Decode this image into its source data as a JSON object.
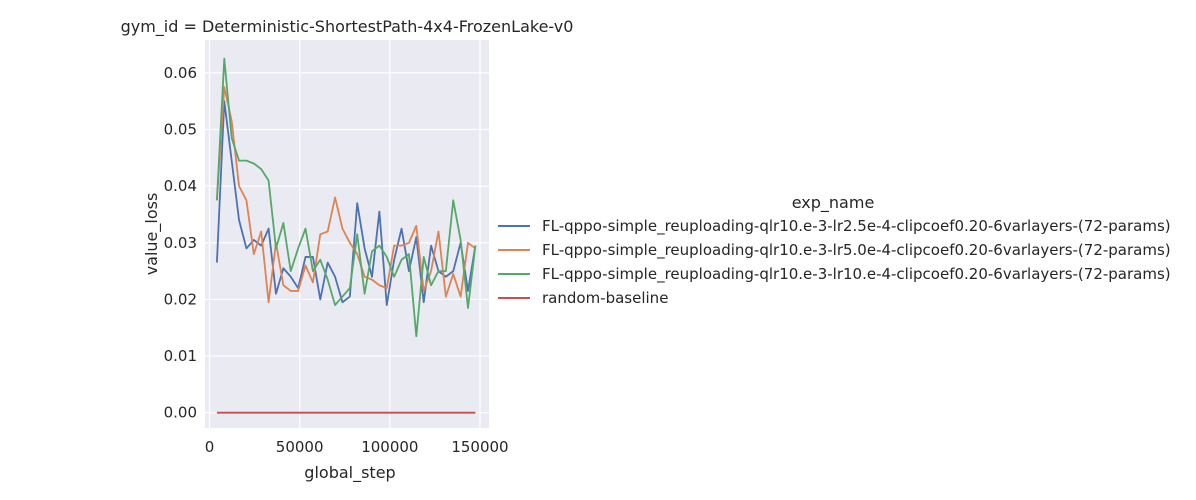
{
  "chart_data": {
    "type": "line",
    "title": "gym_id = Deterministic-ShortestPath-4x4-FrozenLake-v0",
    "xlabel": "global_step",
    "ylabel": "value_loss",
    "xlim": [
      -2500,
      155000
    ],
    "ylim": [
      -0.0027,
      0.0658
    ],
    "xticks": [
      0,
      50000,
      100000,
      150000
    ],
    "xtick_labels": [
      "0",
      "50000",
      "100000",
      "150000"
    ],
    "yticks": [
      0.0,
      0.01,
      0.02,
      0.03,
      0.04,
      0.05,
      0.06
    ],
    "ytick_labels": [
      "0.00",
      "0.01",
      "0.02",
      "0.03",
      "0.04",
      "0.05",
      "0.06"
    ],
    "grid": true,
    "legend_title": "exp_name",
    "legend_position": "right",
    "series": [
      {
        "name": "FL-qppo-simple_reuploading-qlr10.e-3-lr2.5e-4-clipcoef0.20-6varlayers-(72-params)",
        "color": "#4c72b0",
        "x": [
          4096,
          8192,
          12288,
          16384,
          20480,
          24576,
          28672,
          32768,
          36864,
          40960,
          45056,
          49152,
          53248,
          57344,
          61440,
          65536,
          69632,
          73728,
          77824,
          81920,
          86016,
          90112,
          94208,
          98304,
          102400,
          106496,
          110592,
          114688,
          118784,
          122880,
          126976,
          131072,
          135168,
          139264,
          143360,
          147456
        ],
        "y": [
          0.0265,
          0.055,
          0.0445,
          0.034,
          0.029,
          0.0305,
          0.0295,
          0.0325,
          0.021,
          0.0255,
          0.024,
          0.022,
          0.0275,
          0.0275,
          0.02,
          0.0265,
          0.024,
          0.0195,
          0.0205,
          0.037,
          0.029,
          0.024,
          0.0355,
          0.019,
          0.027,
          0.0325,
          0.025,
          0.031,
          0.0195,
          0.0295,
          0.025,
          0.024,
          0.025,
          0.03,
          0.0215,
          0.0295
        ]
      },
      {
        "name": "FL-qppo-simple_reuploading-qlr10.e-3-lr5.0e-4-clipcoef0.20-6varlayers-(72-params)",
        "color": "#dd8452",
        "x": [
          4096,
          8192,
          12288,
          16384,
          20480,
          24576,
          28672,
          32768,
          36864,
          40960,
          45056,
          49152,
          53248,
          57344,
          61440,
          65536,
          69632,
          73728,
          77824,
          81920,
          86016,
          90112,
          94208,
          98304,
          102400,
          106496,
          110592,
          114688,
          118784,
          122880,
          126976,
          131072,
          135168,
          139264,
          143360,
          147456
        ],
        "y": [
          0.0375,
          0.0575,
          0.0515,
          0.04,
          0.0375,
          0.028,
          0.032,
          0.0195,
          0.03,
          0.0225,
          0.0215,
          0.0215,
          0.026,
          0.023,
          0.0315,
          0.032,
          0.038,
          0.0325,
          0.03,
          0.028,
          0.024,
          0.0235,
          0.0225,
          0.022,
          0.0295,
          0.0295,
          0.03,
          0.033,
          0.0215,
          0.025,
          0.032,
          0.0205,
          0.0245,
          0.0205,
          0.03,
          0.029
        ]
      },
      {
        "name": "FL-qppo-simple_reuploading-qlr10.e-3-lr10.e-4-clipcoef0.20-6varlayers-(72-params)",
        "color": "#55a868",
        "x": [
          4096,
          8192,
          12288,
          16384,
          20480,
          24576,
          28672,
          32768,
          36864,
          40960,
          45056,
          49152,
          53248,
          57344,
          61440,
          65536,
          69632,
          73728,
          77824,
          81920,
          86016,
          90112,
          94208,
          98304,
          102400,
          106496,
          110592,
          114688,
          118784,
          122880,
          126976,
          131072,
          135168,
          139264,
          143360,
          147456
        ],
        "y": [
          0.0375,
          0.0625,
          0.0485,
          0.0445,
          0.0445,
          0.044,
          0.043,
          0.041,
          0.029,
          0.0335,
          0.025,
          0.029,
          0.0325,
          0.025,
          0.027,
          0.0235,
          0.019,
          0.0205,
          0.022,
          0.0315,
          0.021,
          0.0285,
          0.0295,
          0.0275,
          0.024,
          0.027,
          0.028,
          0.0135,
          0.0275,
          0.0225,
          0.025,
          0.025,
          0.0375,
          0.0305,
          0.0185,
          0.0295
        ]
      },
      {
        "name": "random-baseline",
        "color": "#c44e52",
        "x": [
          4096,
          147456
        ],
        "y": [
          0.0,
          0.0
        ]
      }
    ]
  }
}
